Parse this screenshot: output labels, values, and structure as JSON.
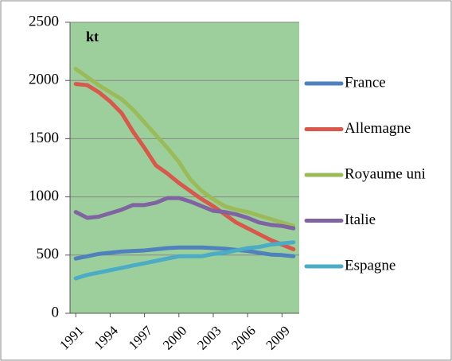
{
  "chart_data": {
    "type": "line",
    "annotation": "kt",
    "x": [
      1991,
      1992,
      1993,
      1994,
      1995,
      1996,
      1997,
      1998,
      1999,
      2000,
      2001,
      2002,
      2003,
      2004,
      2005,
      2006,
      2007,
      2008,
      2009,
      2010
    ],
    "xlim": [
      1990.5,
      2010.5
    ],
    "xticks": [
      1991,
      1994,
      1997,
      2000,
      2003,
      2006,
      2009
    ],
    "ylim": [
      0,
      2500
    ],
    "yticks": [
      0,
      500,
      1000,
      1500,
      2000,
      2500
    ],
    "grid": true,
    "legend": "right",
    "series": [
      {
        "name": "France",
        "color": "#4f81bd",
        "values": [
          470,
          490,
          510,
          520,
          530,
          535,
          540,
          550,
          560,
          565,
          565,
          565,
          560,
          555,
          545,
          535,
          520,
          505,
          500,
          490
        ]
      },
      {
        "name": "Allemagne",
        "color": "#d9584b",
        "values": [
          1970,
          1960,
          1900,
          1820,
          1720,
          1560,
          1420,
          1270,
          1200,
          1120,
          1050,
          980,
          920,
          850,
          780,
          730,
          680,
          630,
          590,
          550
        ]
      },
      {
        "name": "Royaume uni",
        "color": "#9bbb59",
        "values": [
          2100,
          2030,
          1960,
          1900,
          1840,
          1750,
          1640,
          1530,
          1420,
          1300,
          1150,
          1050,
          980,
          920,
          890,
          870,
          840,
          810,
          780,
          750
        ]
      },
      {
        "name": "Italie",
        "color": "#8064a2",
        "values": [
          870,
          820,
          830,
          860,
          890,
          930,
          930,
          950,
          990,
          990,
          960,
          920,
          880,
          870,
          850,
          820,
          780,
          760,
          750,
          730
        ]
      },
      {
        "name": "Espagne",
        "color": "#4bacc6",
        "values": [
          300,
          330,
          350,
          370,
          390,
          410,
          430,
          450,
          470,
          490,
          490,
          490,
          510,
          520,
          540,
          560,
          570,
          590,
          600,
          610
        ]
      }
    ]
  }
}
